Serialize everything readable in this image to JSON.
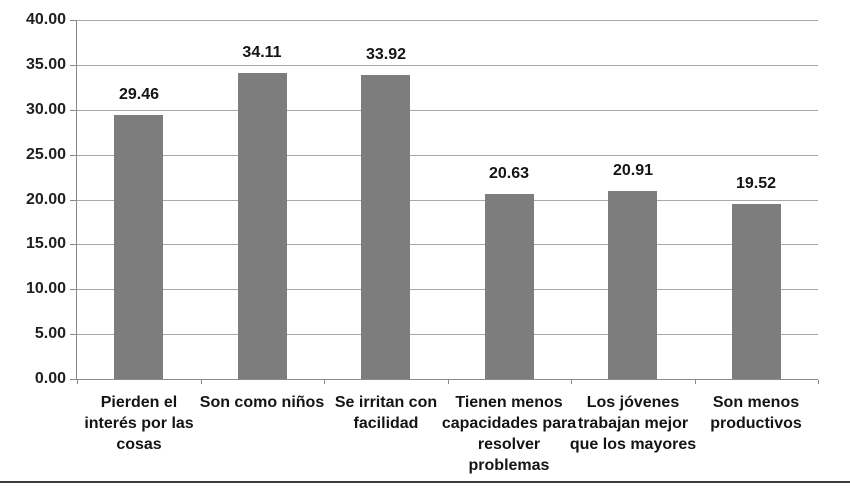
{
  "chart_data": {
    "type": "bar",
    "title": "",
    "xlabel": "",
    "ylabel": "",
    "categories": [
      "Pierden el\ninterés por las\ncosas",
      "Son como niños",
      "Se irritan con\nfacilidad",
      "Tienen menos\ncapacidades para\nresolver\nproblemas",
      "Los jóvenes\ntrabajan mejor\nque los mayores",
      "Son menos\nproductivos"
    ],
    "values": [
      29.46,
      34.11,
      33.92,
      20.63,
      20.91,
      19.52
    ],
    "value_labels": [
      "29.46",
      "34.11",
      "33.92",
      "20.63",
      "20.91",
      "19.52"
    ],
    "y_axis": {
      "min": 0,
      "max": 40,
      "step": 5,
      "tick_labels_top_to_bottom": [
        "40.00",
        "35.00",
        "30.00",
        "25.00",
        "20.00",
        "15.00",
        "10.00",
        "5.00",
        "0.00"
      ]
    },
    "grid": true,
    "legend": false,
    "colors": {
      "bar": "#7d7d7d",
      "gridline": "#a8a8a8",
      "axis": "#8a8a8a",
      "text": "#141414",
      "bottom_rule": "#3d3d3d",
      "background": "#ffffff"
    }
  }
}
